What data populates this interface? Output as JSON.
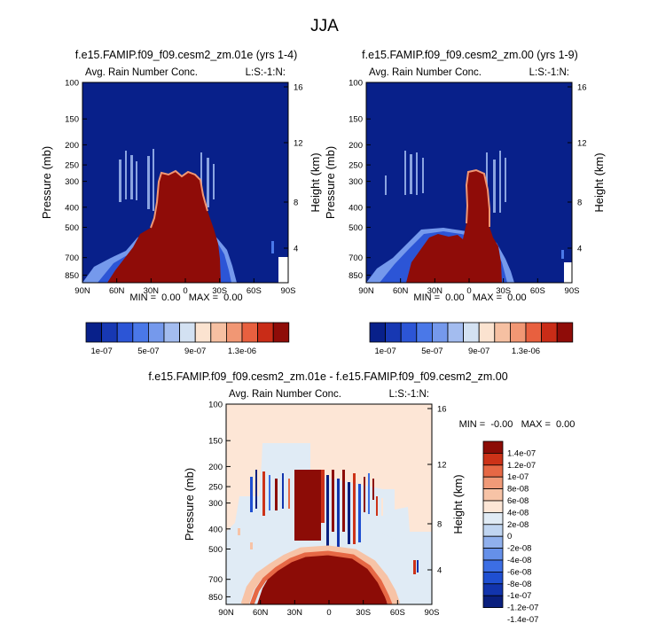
{
  "figure": {
    "title": "JJA"
  },
  "colors": {
    "map13": [
      "#08208a",
      "#1738b3",
      "#2c55d6",
      "#4a78e8",
      "#7599ec",
      "#a3bcef",
      "#d3e1f2",
      "#fbe3d0",
      "#f6c0a2",
      "#f19774",
      "#e8603f",
      "#c92c17",
      "#8f0c08"
    ],
    "diff14": [
      "#0a1f7e",
      "#1234ad",
      "#1f4fd1",
      "#3c6ee4",
      "#6590e9",
      "#90b0ed",
      "#c0d5f1",
      "#e0ebf5",
      "#fde6d6",
      "#f7c3a6",
      "#f09a78",
      "#e66845",
      "#cc3218",
      "#8c0c06"
    ]
  },
  "chart_data": [
    {
      "type": "heatmap",
      "title": "f.e15.FAMIP.f09_f09.cesm2_zm.01e (yrs 1-4)",
      "subtitle_left": "Avg. Rain Number Conc.",
      "subtitle_right": "L:S:-1:N:",
      "ylabel": "Pressure (mb)",
      "ylabel_right": "Height (km)",
      "xlim": [
        90,
        -90
      ],
      "ylim": [
        100,
        925
      ],
      "ylog": true,
      "x_tick_labels": [
        "90N",
        "60N",
        "30N",
        "0",
        "30S",
        "60S",
        "90S"
      ],
      "y_ticks": [
        100,
        150,
        200,
        250,
        300,
        400,
        500,
        700,
        850
      ],
      "y_ticks_right": [
        "16",
        "12",
        "8",
        "4"
      ],
      "stats": "MIN =  0.00   MAX =  0.00",
      "colorbar_labels": [
        "1e-07",
        "5e-07",
        "9e-07",
        "1.3e-06"
      ]
    },
    {
      "type": "heatmap",
      "title": "f.e15.FAMIP.f09_f09.cesm2_zm.00 (yrs 1-9)",
      "subtitle_left": "Avg. Rain Number Conc.",
      "subtitle_right": "L:S:-1:N:",
      "ylabel": "Pressure (mb)",
      "ylabel_right": "Height (km)",
      "xlim": [
        90,
        -90
      ],
      "ylim": [
        100,
        925
      ],
      "ylog": true,
      "x_tick_labels": [
        "90N",
        "60N",
        "30N",
        "0",
        "30S",
        "60S",
        "90S"
      ],
      "y_ticks": [
        100,
        150,
        200,
        250,
        300,
        400,
        500,
        700,
        850
      ],
      "y_ticks_right": [
        "16",
        "12",
        "8",
        "4"
      ],
      "stats": "MIN =  0.00   MAX =  0.00",
      "colorbar_labels": [
        "1e-07",
        "5e-07",
        "9e-07",
        "1.3e-06"
      ]
    },
    {
      "type": "heatmap",
      "title": "f.e15.FAMIP.f09_f09.cesm2_zm.01e - f.e15.FAMIP.f09_f09.cesm2_zm.00",
      "subtitle_left": "Avg. Rain Number Conc.",
      "subtitle_right": "L:S:-1:N:",
      "ylabel": "Pressure (mb)",
      "ylabel_right": "Height (km)",
      "xlim": [
        90,
        -90
      ],
      "ylim": [
        100,
        925
      ],
      "ylog": true,
      "x_tick_labels": [
        "90N",
        "60N",
        "30N",
        "0",
        "30S",
        "60S",
        "90S"
      ],
      "y_ticks": [
        100,
        150,
        200,
        250,
        300,
        400,
        500,
        700,
        850
      ],
      "y_ticks_right": [
        "16",
        "12",
        "8",
        "4"
      ],
      "stats": "MIN =  -0.00   MAX =  0.00",
      "colorbar_labels": [
        "1.4e-07",
        "1.2e-07",
        "1e-07",
        "8e-08",
        "6e-08",
        "4e-08",
        "2e-08",
        "0",
        "-2e-08",
        "-4e-08",
        "-6e-08",
        "-8e-08",
        "-1e-07",
        "-1.2e-07",
        "-1.4e-07"
      ]
    }
  ]
}
